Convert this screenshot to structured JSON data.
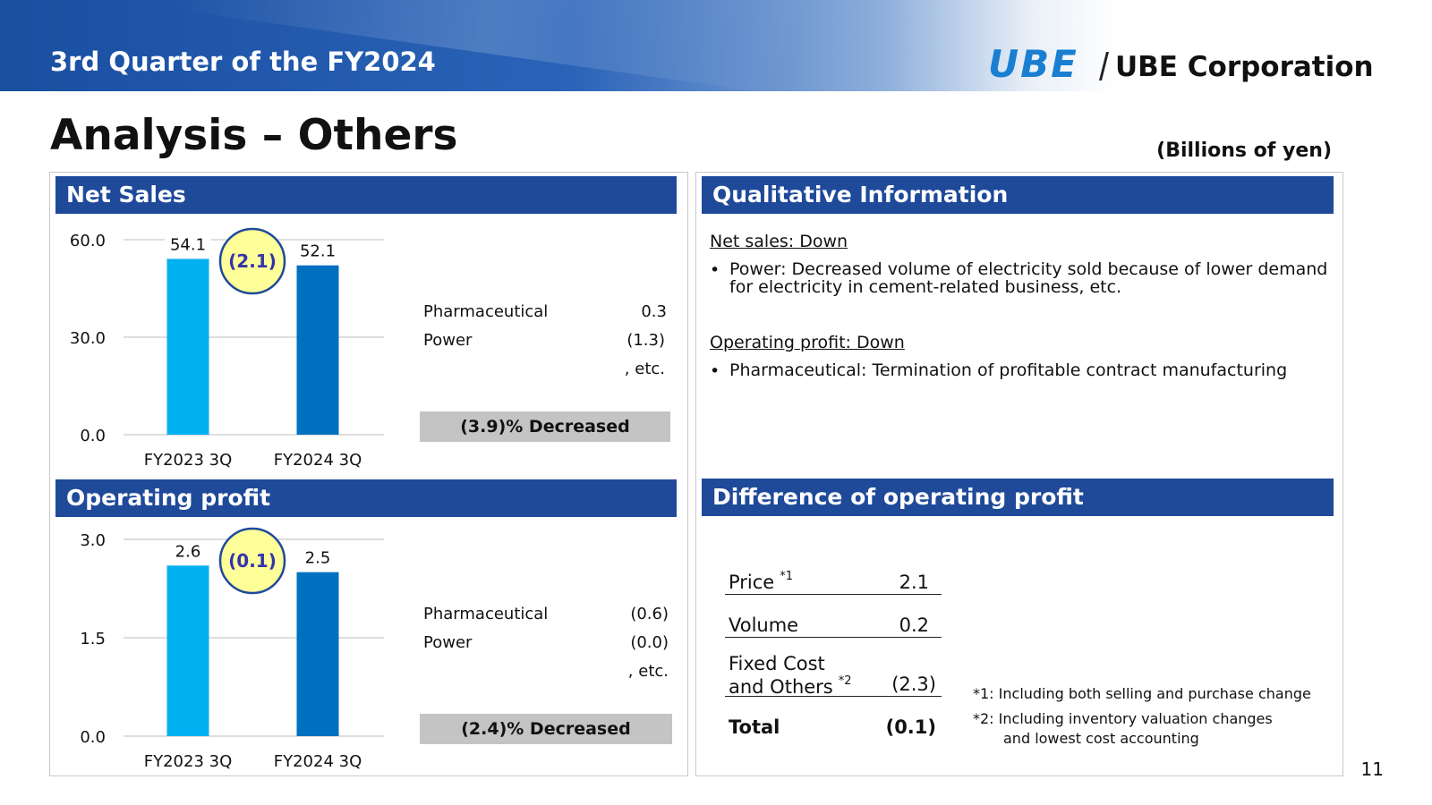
{
  "header": {
    "title": "3rd Quarter of the FY2024",
    "logo_mark": "UBE",
    "logo_text": "UBE Corporation"
  },
  "page": {
    "title": "Analysis – Others",
    "unit_note": "(Billions of yen)",
    "page_number": "11"
  },
  "net_sales": {
    "heading": "Net Sales",
    "difference": "(2.1)",
    "breakdown": [
      {
        "label": "Pharmaceutical",
        "value": "0.3"
      },
      {
        "label": "Power",
        "value": "(1.3)"
      }
    ],
    "breakdown_etc": ", etc.",
    "change_note": "(3.9)% Decreased"
  },
  "operating_profit": {
    "heading": "Operating profit",
    "difference": "(0.1)",
    "breakdown": [
      {
        "label": "Pharmaceutical",
        "value": "(0.6)"
      },
      {
        "label": "Power",
        "value": "(0.0)"
      }
    ],
    "breakdown_etc": ", etc.",
    "change_note": "(2.4)% Decreased"
  },
  "qualitative": {
    "heading": "Qualitative Information",
    "sections": [
      {
        "head": "Net sales: Down",
        "bullets": [
          "Power: Decreased volume of electricity sold because of lower demand for electricity in cement-related business, etc."
        ]
      },
      {
        "head": "Operating profit: Down",
        "bullets": [
          "Pharmaceutical: Termination of profitable contract manufacturing"
        ]
      }
    ]
  },
  "difference": {
    "heading": "Difference of operating profit",
    "rows": [
      {
        "label": "Price",
        "sup": "*1",
        "value": "2.1"
      },
      {
        "label": "Volume",
        "sup": "",
        "value": "0.2"
      },
      {
        "label_line1": "Fixed Cost",
        "label": "and Others",
        "sup": "*2",
        "value": "(2.3)"
      }
    ],
    "total_label": "Total",
    "total_value": "(0.1)",
    "footnotes": [
      "*1: Including both selling and purchase change",
      "*2: Including inventory valuation changes",
      "and lowest cost accounting"
    ]
  },
  "colors": {
    "bar_prev": "#00b0f0",
    "bar_curr": "#0070c0",
    "band": "#1f4a9a",
    "bubble_fill": "#ffff99",
    "bubble_text": "#3333aa"
  },
  "chart_data": [
    {
      "type": "bar",
      "title": "Net Sales",
      "categories": [
        "FY2023 3Q",
        "FY2024 3Q"
      ],
      "values": [
        54.1,
        52.1
      ],
      "value_labels": [
        "54.1",
        "52.1"
      ],
      "yticks": [
        "0.0",
        "30.0",
        "60.0"
      ],
      "ylim": [
        0,
        60
      ],
      "grid": true
    },
    {
      "type": "bar",
      "title": "Operating profit",
      "categories": [
        "FY2023 3Q",
        "FY2024 3Q"
      ],
      "values": [
        2.6,
        2.5
      ],
      "value_labels": [
        "2.6",
        "2.5"
      ],
      "yticks": [
        "0.0",
        "1.5",
        "3.0"
      ],
      "ylim": [
        0,
        3
      ],
      "grid": true
    }
  ]
}
